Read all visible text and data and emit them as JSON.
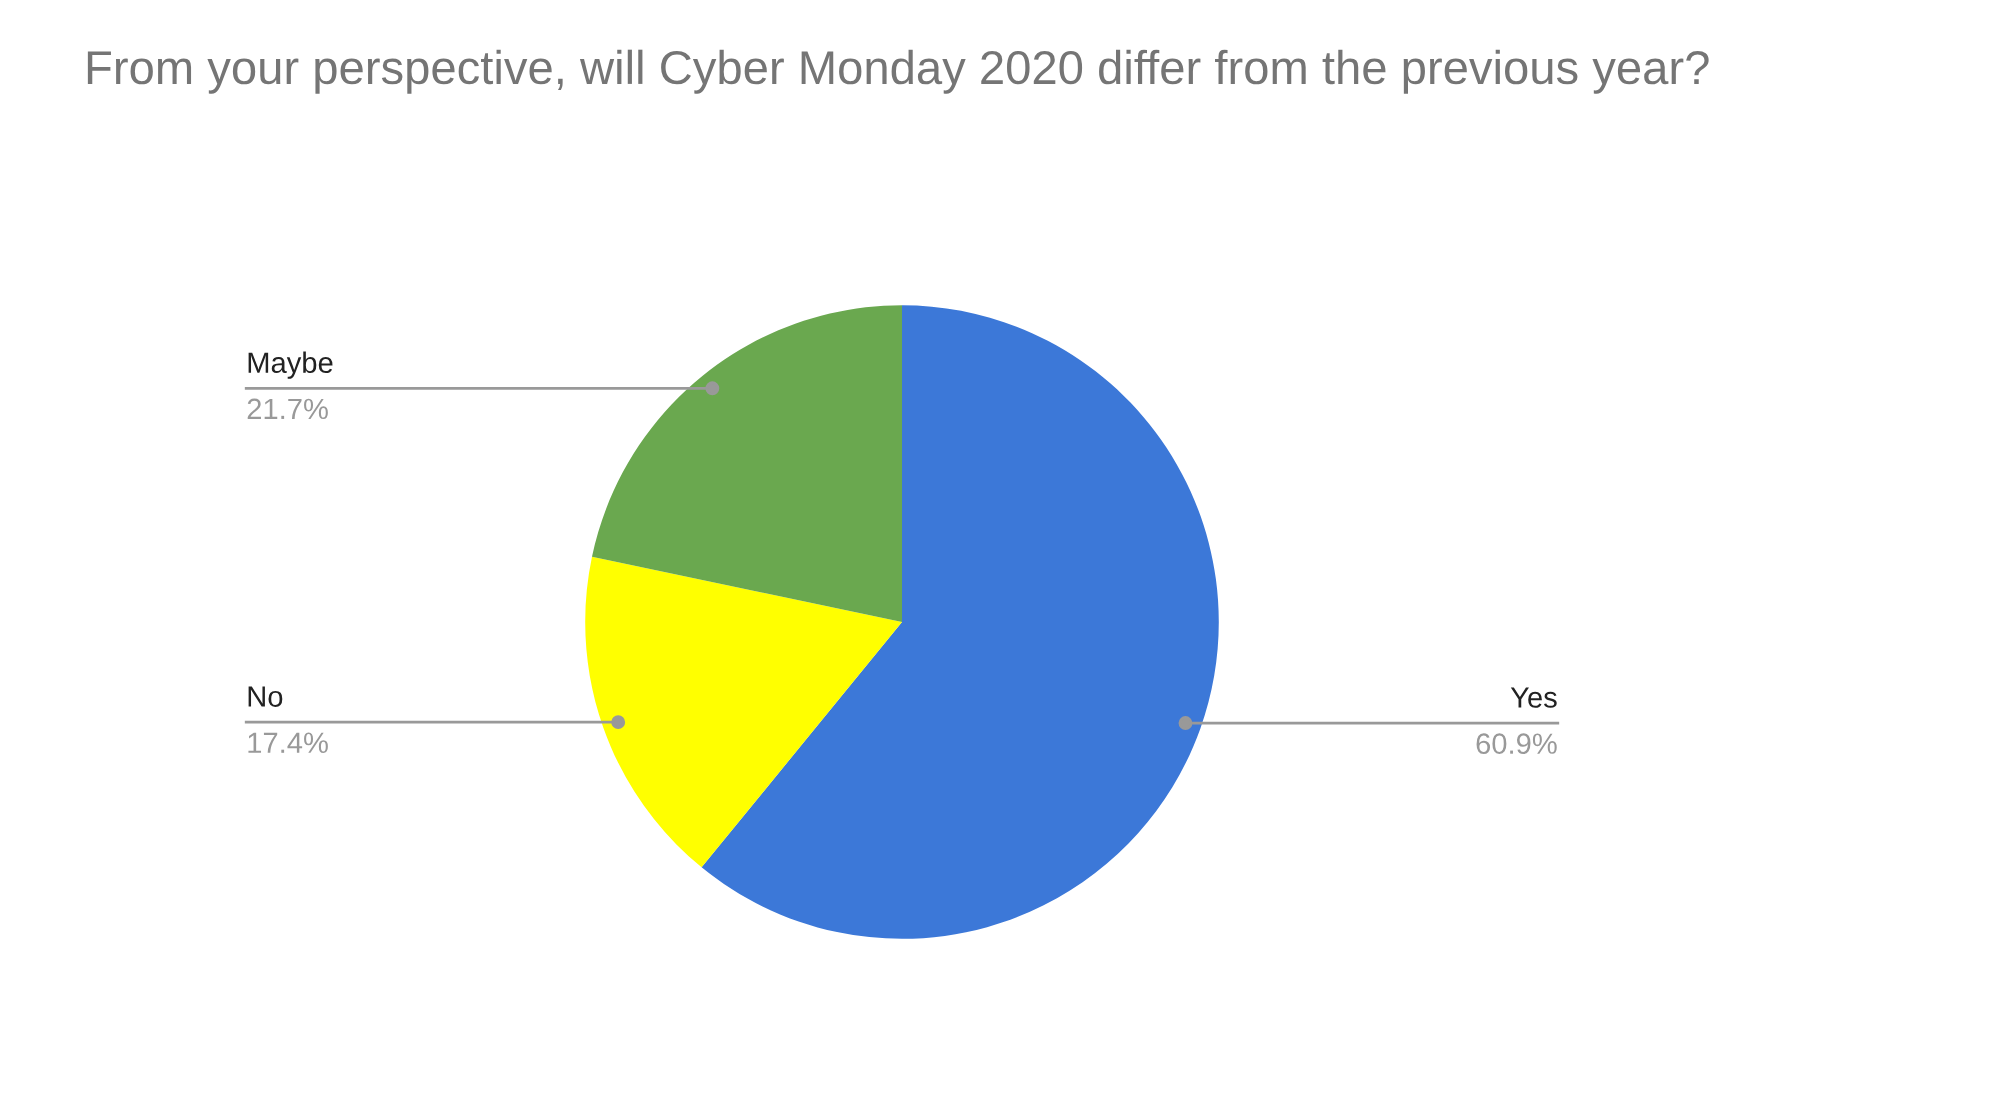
{
  "chart_data": {
    "type": "pie",
    "title": "From your perspective, will Cyber Monday 2020 differ from the previous year?",
    "categories": [
      "Yes",
      "No",
      "Maybe"
    ],
    "values": [
      60.9,
      17.4,
      21.7
    ],
    "colors": [
      "#3c78d8",
      "#ffff00",
      "#6aa84f"
    ],
    "value_labels": [
      "60.9%",
      "17.4%",
      "21.7%"
    ]
  }
}
